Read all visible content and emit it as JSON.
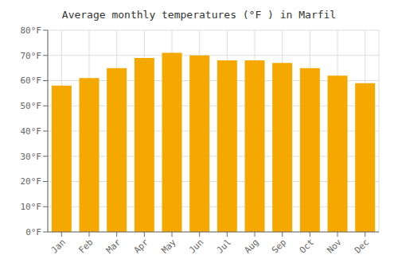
{
  "chart_data": {
    "type": "bar",
    "title": "Average monthly temperatures (°F ) in Marfil",
    "categories": [
      "Jan",
      "Feb",
      "Mar",
      "Apr",
      "May",
      "Jun",
      "Jul",
      "Aug",
      "Sep",
      "Oct",
      "Nov",
      "Dec"
    ],
    "values": [
      58,
      61,
      65,
      69,
      71,
      70,
      68,
      68,
      67,
      65,
      62,
      59
    ],
    "color": "#F5A800",
    "ylim": [
      0,
      80
    ],
    "yticks": [
      {
        "value": 0,
        "label": "0°F"
      },
      {
        "value": 10,
        "label": "10°F"
      },
      {
        "value": 20,
        "label": "20°F"
      },
      {
        "value": 30,
        "label": "30°F"
      },
      {
        "value": 40,
        "label": "40°F"
      },
      {
        "value": 50,
        "label": "50°F"
      },
      {
        "value": 60,
        "label": "60°F"
      },
      {
        "value": 70,
        "label": "70°F"
      },
      {
        "value": 80,
        "label": "80°F"
      }
    ],
    "grid": true
  }
}
